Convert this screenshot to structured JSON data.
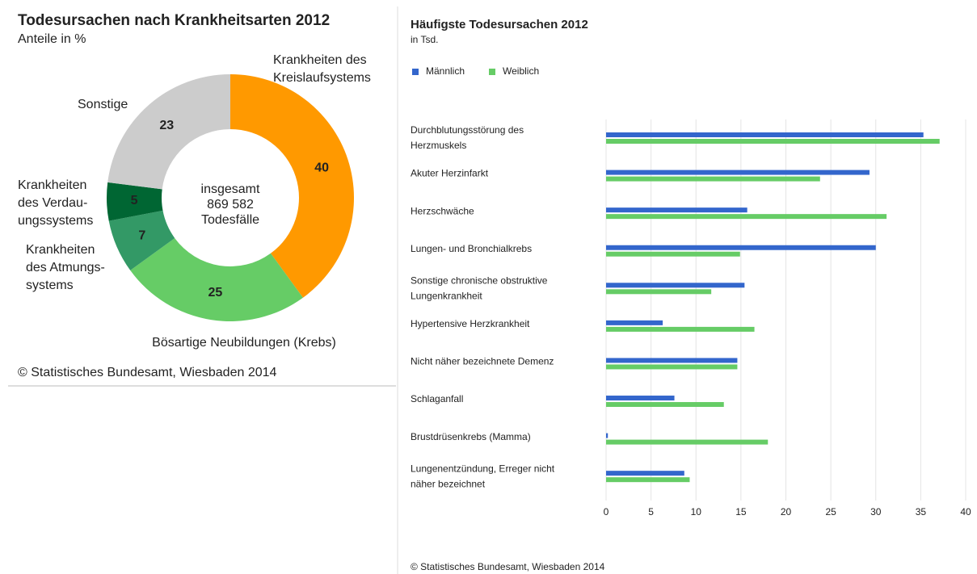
{
  "chart_data": [
    {
      "type": "donut",
      "title": "Todesursachen nach Krankheitsarten 2012",
      "subtitle": "Anteile in %",
      "center_text": [
        "insgesamt",
        "869 582",
        "Todesfälle"
      ],
      "categories": [
        [
          "Krankheiten des",
          "Kreislaufsystems"
        ],
        [
          "Bösartige Neubildungen (Krebs)"
        ],
        [
          "Krankheiten",
          "des Atmungs-",
          "systems"
        ],
        [
          "Krankheiten",
          "des Verdau-",
          "ungssystems"
        ],
        [
          "Sonstige"
        ]
      ],
      "values": [
        40,
        25,
        7,
        5,
        23
      ],
      "colors": [
        "#ff9900",
        "#66cc66",
        "#339966",
        "#006633",
        "#cccccc"
      ],
      "source": "© Statistisches Bundesamt, Wiesbaden 2014"
    },
    {
      "type": "hbar",
      "title": "Häufigste Todesursachen 2012",
      "subtitle": "in Tsd.",
      "categories": [
        [
          "Durchblutungsstörung des",
          "Herzmuskels"
        ],
        [
          "Akuter Herzinfarkt"
        ],
        [
          "Herzschwäche"
        ],
        [
          "Lungen- und Bronchialkrebs"
        ],
        [
          "Sonstige chronische obstruktive",
          "Lungenkrankheit"
        ],
        [
          "Hypertensive Herzkrankheit"
        ],
        [
          "Nicht näher bezeichnete Demenz"
        ],
        [
          "Schlaganfall"
        ],
        [
          "Brustdrüsenkrebs (Mamma)"
        ],
        [
          "Lungenentzündung, Erreger nicht",
          "näher bezeichnet"
        ]
      ],
      "series": [
        {
          "name": "Männlich",
          "color": "#3366cc",
          "values": [
            35.3,
            29.3,
            15.7,
            30.0,
            15.4,
            6.3,
            14.6,
            7.6,
            0.2,
            8.7
          ]
        },
        {
          "name": "Weiblich",
          "color": "#66cc66",
          "values": [
            37.1,
            23.8,
            31.2,
            14.9,
            11.7,
            16.5,
            14.6,
            13.1,
            18.0,
            9.3
          ]
        }
      ],
      "xlim": [
        0,
        40
      ],
      "xticks": [
        0,
        5,
        10,
        15,
        20,
        25,
        30,
        35,
        40
      ],
      "grid": true,
      "legend": "top",
      "source": "© Statistisches Bundesamt, Wiesbaden 2014"
    }
  ]
}
